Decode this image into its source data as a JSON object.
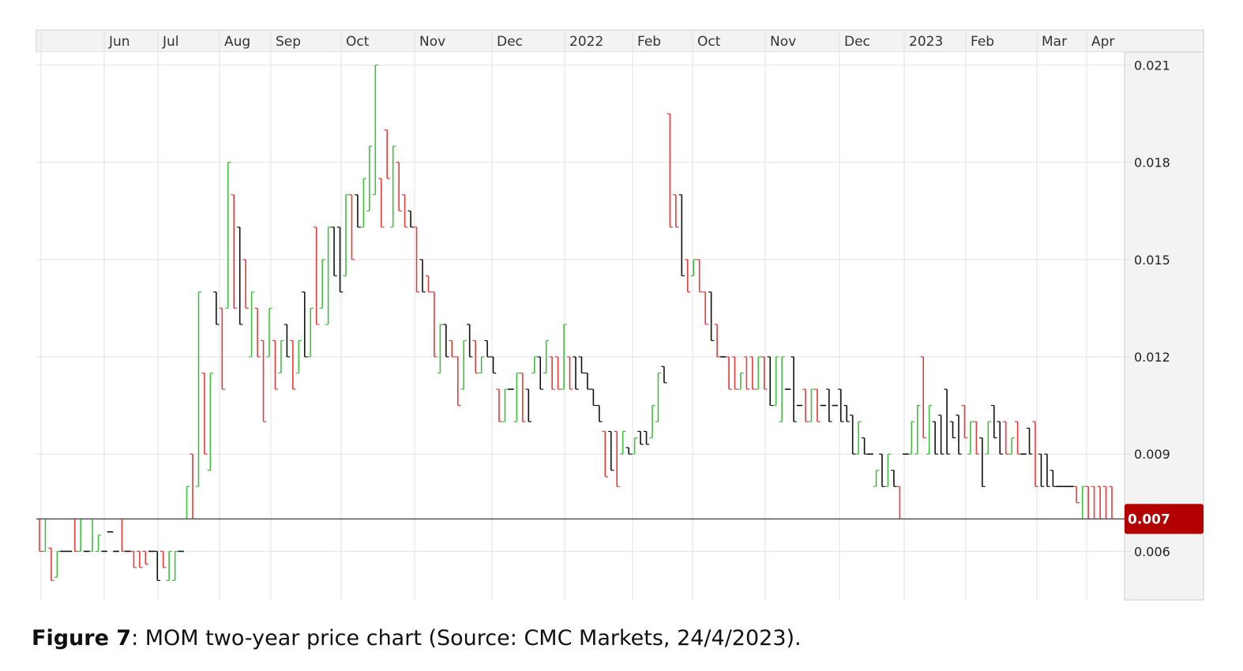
{
  "caption": {
    "label": "Figure 7",
    "text": ": MOM two-year price chart (Source: CMC Markets, 24/4/2023)."
  },
  "colors": {
    "up": "#3fbf3f",
    "down": "#e83a3a",
    "flat": "#111111",
    "grid": "#e2e2e2",
    "current_price_bg": "#b30000",
    "current_price_line": "#555555"
  },
  "chart_data": {
    "type": "ohlc",
    "x_tick_labels": [
      "Jun",
      "Jul",
      "Aug",
      "Sep",
      "Oct",
      "Nov",
      "Dec",
      "2022",
      "Feb",
      "Oct",
      "Nov",
      "Dec",
      "2023",
      "Feb",
      "Mar",
      "Apr"
    ],
    "y_tick_labels": [
      "0.021",
      "0.018",
      "0.015",
      "0.012",
      "0.009",
      "0.006"
    ],
    "y_ticks": [
      0.021,
      0.018,
      0.015,
      0.012,
      0.009,
      0.006
    ],
    "ylim": [
      0.0045,
      0.0214
    ],
    "grid": true,
    "current_price": 0.007,
    "current_price_label": "0.007",
    "bars": [
      {
        "h": 0.007,
        "l": 0.006,
        "c": "down"
      },
      {
        "h": 0.007,
        "l": 0.006,
        "c": "up"
      },
      {
        "h": 0.0061,
        "l": 0.0051,
        "c": "down"
      },
      {
        "h": 0.006,
        "l": 0.0052,
        "c": "up"
      },
      {
        "h": 0.006,
        "l": 0.006,
        "c": "flat"
      },
      {
        "h": 0.006,
        "l": 0.006,
        "c": "flat"
      },
      {
        "h": 0.007,
        "l": 0.006,
        "c": "down"
      },
      {
        "h": 0.007,
        "l": 0.006,
        "c": "up"
      },
      {
        "h": 0.006,
        "l": 0.006,
        "c": "flat"
      },
      {
        "h": 0.007,
        "l": 0.006,
        "c": "up"
      },
      {
        "h": 0.0065,
        "l": 0.006,
        "c": "up"
      },
      {
        "h": 0.006,
        "l": 0.006,
        "c": "flat"
      },
      {
        "h": 0.0066,
        "l": 0.0066,
        "c": "flat"
      },
      {
        "h": 0.006,
        "l": 0.006,
        "c": "flat"
      },
      {
        "h": 0.007,
        "l": 0.006,
        "c": "down"
      },
      {
        "h": 0.006,
        "l": 0.006,
        "c": "flat"
      },
      {
        "h": 0.006,
        "l": 0.0055,
        "c": "down"
      },
      {
        "h": 0.006,
        "l": 0.0055,
        "c": "down"
      },
      {
        "h": 0.006,
        "l": 0.0056,
        "c": "down"
      },
      {
        "h": 0.006,
        "l": 0.006,
        "c": "flat"
      },
      {
        "h": 0.006,
        "l": 0.0051,
        "c": "flat"
      },
      {
        "h": 0.006,
        "l": 0.0055,
        "c": "down"
      },
      {
        "h": 0.006,
        "l": 0.0051,
        "c": "up"
      },
      {
        "h": 0.006,
        "l": 0.0051,
        "c": "up"
      },
      {
        "h": 0.006,
        "l": 0.006,
        "c": "flat"
      },
      {
        "h": 0.008,
        "l": 0.007,
        "c": "up"
      },
      {
        "h": 0.009,
        "l": 0.007,
        "c": "down"
      },
      {
        "h": 0.014,
        "l": 0.008,
        "c": "up"
      },
      {
        "h": 0.0115,
        "l": 0.009,
        "c": "down"
      },
      {
        "h": 0.0115,
        "l": 0.0085,
        "c": "up"
      },
      {
        "h": 0.014,
        "l": 0.013,
        "c": "flat"
      },
      {
        "h": 0.0135,
        "l": 0.011,
        "c": "down"
      },
      {
        "h": 0.018,
        "l": 0.0135,
        "c": "up"
      },
      {
        "h": 0.017,
        "l": 0.0135,
        "c": "down"
      },
      {
        "h": 0.016,
        "l": 0.013,
        "c": "flat"
      },
      {
        "h": 0.015,
        "l": 0.0135,
        "c": "down"
      },
      {
        "h": 0.014,
        "l": 0.012,
        "c": "up"
      },
      {
        "h": 0.0135,
        "l": 0.012,
        "c": "down"
      },
      {
        "h": 0.0125,
        "l": 0.01,
        "c": "down"
      },
      {
        "h": 0.0135,
        "l": 0.012,
        "c": "up"
      },
      {
        "h": 0.0125,
        "l": 0.011,
        "c": "down"
      },
      {
        "h": 0.0125,
        "l": 0.0115,
        "c": "up"
      },
      {
        "h": 0.013,
        "l": 0.012,
        "c": "flat"
      },
      {
        "h": 0.0125,
        "l": 0.011,
        "c": "down"
      },
      {
        "h": 0.0125,
        "l": 0.0115,
        "c": "up"
      },
      {
        "h": 0.014,
        "l": 0.012,
        "c": "flat"
      },
      {
        "h": 0.0135,
        "l": 0.012,
        "c": "up"
      },
      {
        "h": 0.016,
        "l": 0.013,
        "c": "down"
      },
      {
        "h": 0.015,
        "l": 0.0135,
        "c": "up"
      },
      {
        "h": 0.016,
        "l": 0.013,
        "c": "up"
      },
      {
        "h": 0.016,
        "l": 0.0145,
        "c": "flat"
      },
      {
        "h": 0.016,
        "l": 0.014,
        "c": "flat"
      },
      {
        "h": 0.017,
        "l": 0.0145,
        "c": "up"
      },
      {
        "h": 0.017,
        "l": 0.015,
        "c": "down"
      },
      {
        "h": 0.017,
        "l": 0.016,
        "c": "flat"
      },
      {
        "h": 0.0175,
        "l": 0.016,
        "c": "up"
      },
      {
        "h": 0.0185,
        "l": 0.0165,
        "c": "up"
      },
      {
        "h": 0.021,
        "l": 0.017,
        "c": "up"
      },
      {
        "h": 0.0175,
        "l": 0.016,
        "c": "down"
      },
      {
        "h": 0.019,
        "l": 0.0175,
        "c": "down"
      },
      {
        "h": 0.0185,
        "l": 0.016,
        "c": "up"
      },
      {
        "h": 0.018,
        "l": 0.0165,
        "c": "down"
      },
      {
        "h": 0.017,
        "l": 0.016,
        "c": "down"
      },
      {
        "h": 0.0165,
        "l": 0.016,
        "c": "flat"
      },
      {
        "h": 0.016,
        "l": 0.014,
        "c": "down"
      },
      {
        "h": 0.015,
        "l": 0.014,
        "c": "flat"
      },
      {
        "h": 0.0145,
        "l": 0.014,
        "c": "down"
      },
      {
        "h": 0.014,
        "l": 0.012,
        "c": "down"
      },
      {
        "h": 0.013,
        "l": 0.0115,
        "c": "up"
      },
      {
        "h": 0.013,
        "l": 0.012,
        "c": "flat"
      },
      {
        "h": 0.0125,
        "l": 0.012,
        "c": "down"
      },
      {
        "h": 0.012,
        "l": 0.0105,
        "c": "down"
      },
      {
        "h": 0.0125,
        "l": 0.011,
        "c": "up"
      },
      {
        "h": 0.013,
        "l": 0.012,
        "c": "flat"
      },
      {
        "h": 0.0125,
        "l": 0.0115,
        "c": "down"
      },
      {
        "h": 0.012,
        "l": 0.0115,
        "c": "up"
      },
      {
        "h": 0.0125,
        "l": 0.012,
        "c": "flat"
      },
      {
        "h": 0.012,
        "l": 0.0115,
        "c": "flat"
      },
      {
        "h": 0.011,
        "l": 0.01,
        "c": "down"
      },
      {
        "h": 0.011,
        "l": 0.01,
        "c": "up"
      },
      {
        "h": 0.011,
        "l": 0.011,
        "c": "flat"
      },
      {
        "h": 0.0115,
        "l": 0.01,
        "c": "up"
      },
      {
        "h": 0.0115,
        "l": 0.01,
        "c": "down"
      },
      {
        "h": 0.011,
        "l": 0.01,
        "c": "flat"
      },
      {
        "h": 0.012,
        "l": 0.0115,
        "c": "up"
      },
      {
        "h": 0.012,
        "l": 0.011,
        "c": "flat"
      },
      {
        "h": 0.0125,
        "l": 0.0115,
        "c": "up"
      },
      {
        "h": 0.012,
        "l": 0.011,
        "c": "down"
      },
      {
        "h": 0.012,
        "l": 0.011,
        "c": "down"
      },
      {
        "h": 0.013,
        "l": 0.011,
        "c": "up"
      },
      {
        "h": 0.012,
        "l": 0.011,
        "c": "down"
      },
      {
        "h": 0.012,
        "l": 0.011,
        "c": "flat"
      },
      {
        "h": 0.012,
        "l": 0.0115,
        "c": "flat"
      },
      {
        "h": 0.0115,
        "l": 0.011,
        "c": "flat"
      },
      {
        "h": 0.011,
        "l": 0.0105,
        "c": "flat"
      },
      {
        "h": 0.0105,
        "l": 0.01,
        "c": "flat"
      },
      {
        "h": 0.0097,
        "l": 0.0083,
        "c": "down"
      },
      {
        "h": 0.0097,
        "l": 0.0085,
        "c": "flat"
      },
      {
        "h": 0.0097,
        "l": 0.008,
        "c": "down"
      },
      {
        "h": 0.0097,
        "l": 0.009,
        "c": "up"
      },
      {
        "h": 0.0092,
        "l": 0.009,
        "c": "flat"
      },
      {
        "h": 0.0095,
        "l": 0.009,
        "c": "up"
      },
      {
        "h": 0.0097,
        "l": 0.0093,
        "c": "flat"
      },
      {
        "h": 0.0097,
        "l": 0.0093,
        "c": "flat"
      },
      {
        "h": 0.0105,
        "l": 0.0095,
        "c": "up"
      },
      {
        "h": 0.0115,
        "l": 0.01,
        "c": "up"
      },
      {
        "h": 0.0117,
        "l": 0.0112,
        "c": "flat"
      },
      {
        "h": 0.0195,
        "l": 0.016,
        "c": "down"
      },
      {
        "h": 0.017,
        "l": 0.016,
        "c": "down"
      },
      {
        "h": 0.017,
        "l": 0.0145,
        "c": "flat"
      },
      {
        "h": 0.015,
        "l": 0.014,
        "c": "down"
      },
      {
        "h": 0.015,
        "l": 0.0145,
        "c": "up"
      },
      {
        "h": 0.015,
        "l": 0.014,
        "c": "down"
      },
      {
        "h": 0.014,
        "l": 0.013,
        "c": "down"
      },
      {
        "h": 0.014,
        "l": 0.0125,
        "c": "flat"
      },
      {
        "h": 0.013,
        "l": 0.012,
        "c": "down"
      },
      {
        "h": 0.012,
        "l": 0.012,
        "c": "flat"
      },
      {
        "h": 0.012,
        "l": 0.011,
        "c": "down"
      },
      {
        "h": 0.012,
        "l": 0.011,
        "c": "down"
      },
      {
        "h": 0.0115,
        "l": 0.011,
        "c": "up"
      },
      {
        "h": 0.012,
        "l": 0.011,
        "c": "down"
      },
      {
        "h": 0.012,
        "l": 0.011,
        "c": "down"
      },
      {
        "h": 0.012,
        "l": 0.011,
        "c": "up"
      },
      {
        "h": 0.012,
        "l": 0.011,
        "c": "down"
      },
      {
        "h": 0.012,
        "l": 0.0105,
        "c": "flat"
      },
      {
        "h": 0.012,
        "l": 0.0105,
        "c": "up"
      },
      {
        "h": 0.012,
        "l": 0.01,
        "c": "up"
      },
      {
        "h": 0.011,
        "l": 0.011,
        "c": "flat"
      },
      {
        "h": 0.012,
        "l": 0.01,
        "c": "flat"
      },
      {
        "h": 0.0105,
        "l": 0.0105,
        "c": "flat"
      },
      {
        "h": 0.011,
        "l": 0.01,
        "c": "down"
      },
      {
        "h": 0.011,
        "l": 0.01,
        "c": "up"
      },
      {
        "h": 0.011,
        "l": 0.01,
        "c": "down"
      },
      {
        "h": 0.0105,
        "l": 0.0105,
        "c": "flat"
      },
      {
        "h": 0.011,
        "l": 0.01,
        "c": "flat"
      },
      {
        "h": 0.0105,
        "l": 0.0105,
        "c": "flat"
      },
      {
        "h": 0.011,
        "l": 0.01,
        "c": "flat"
      },
      {
        "h": 0.0105,
        "l": 0.01,
        "c": "flat"
      },
      {
        "h": 0.0102,
        "l": 0.009,
        "c": "flat"
      },
      {
        "h": 0.01,
        "l": 0.009,
        "c": "up"
      },
      {
        "h": 0.0095,
        "l": 0.009,
        "c": "flat"
      },
      {
        "h": 0.009,
        "l": 0.009,
        "c": "flat"
      },
      {
        "h": 0.0085,
        "l": 0.008,
        "c": "up"
      },
      {
        "h": 0.009,
        "l": 0.008,
        "c": "flat"
      },
      {
        "h": 0.009,
        "l": 0.008,
        "c": "up"
      },
      {
        "h": 0.0085,
        "l": 0.008,
        "c": "flat"
      },
      {
        "h": 0.008,
        "l": 0.007,
        "c": "down"
      },
      {
        "h": 0.009,
        "l": 0.009,
        "c": "flat"
      },
      {
        "h": 0.01,
        "l": 0.009,
        "c": "up"
      },
      {
        "h": 0.0105,
        "l": 0.009,
        "c": "up"
      },
      {
        "h": 0.012,
        "l": 0.0095,
        "c": "down"
      },
      {
        "h": 0.0105,
        "l": 0.009,
        "c": "up"
      },
      {
        "h": 0.01,
        "l": 0.009,
        "c": "flat"
      },
      {
        "h": 0.0102,
        "l": 0.009,
        "c": "flat"
      },
      {
        "h": 0.011,
        "l": 0.009,
        "c": "flat"
      },
      {
        "h": 0.01,
        "l": 0.0095,
        "c": "flat"
      },
      {
        "h": 0.0102,
        "l": 0.009,
        "c": "flat"
      },
      {
        "h": 0.0105,
        "l": 0.0095,
        "c": "down"
      },
      {
        "h": 0.01,
        "l": 0.009,
        "c": "up"
      },
      {
        "h": 0.01,
        "l": 0.009,
        "c": "down"
      },
      {
        "h": 0.0095,
        "l": 0.008,
        "c": "flat"
      },
      {
        "h": 0.01,
        "l": 0.009,
        "c": "up"
      },
      {
        "h": 0.0105,
        "l": 0.0095,
        "c": "flat"
      },
      {
        "h": 0.01,
        "l": 0.009,
        "c": "flat"
      },
      {
        "h": 0.01,
        "l": 0.009,
        "c": "down"
      },
      {
        "h": 0.0095,
        "l": 0.009,
        "c": "up"
      },
      {
        "h": 0.01,
        "l": 0.009,
        "c": "down"
      },
      {
        "h": 0.009,
        "l": 0.009,
        "c": "flat"
      },
      {
        "h": 0.0098,
        "l": 0.009,
        "c": "flat"
      },
      {
        "h": 0.01,
        "l": 0.008,
        "c": "down"
      },
      {
        "h": 0.009,
        "l": 0.008,
        "c": "flat"
      },
      {
        "h": 0.009,
        "l": 0.008,
        "c": "flat"
      },
      {
        "h": 0.0085,
        "l": 0.008,
        "c": "flat"
      },
      {
        "h": 0.008,
        "l": 0.008,
        "c": "flat"
      },
      {
        "h": 0.008,
        "l": 0.008,
        "c": "flat"
      },
      {
        "h": 0.008,
        "l": 0.008,
        "c": "flat"
      },
      {
        "h": 0.008,
        "l": 0.0075,
        "c": "down"
      },
      {
        "h": 0.008,
        "l": 0.007,
        "c": "up"
      },
      {
        "h": 0.008,
        "l": 0.007,
        "c": "down"
      },
      {
        "h": 0.008,
        "l": 0.007,
        "c": "down"
      },
      {
        "h": 0.008,
        "l": 0.007,
        "c": "down"
      },
      {
        "h": 0.008,
        "l": 0.007,
        "c": "down"
      },
      {
        "h": 0.008,
        "l": 0.007,
        "c": "down"
      }
    ]
  }
}
